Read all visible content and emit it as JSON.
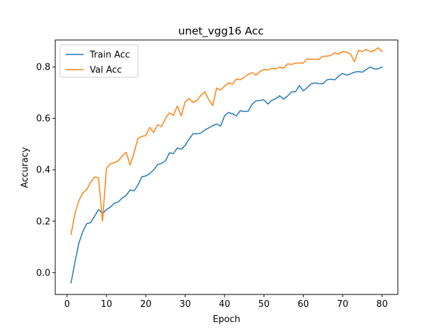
{
  "chart_data": {
    "type": "line",
    "title": "unet_vgg16 Acc",
    "xlabel": "Epoch",
    "ylabel": "Accuracy",
    "xlim": [
      -3,
      84
    ],
    "ylim": [
      -0.085,
      0.905
    ],
    "xticks": [
      0,
      10,
      20,
      30,
      40,
      50,
      60,
      70,
      80
    ],
    "yticks": [
      0.0,
      0.2,
      0.4,
      0.6,
      0.8
    ],
    "ytick_labels": [
      "0.0",
      "0.2",
      "0.4",
      "0.6",
      "0.8"
    ],
    "grid": false,
    "legend": "top-left",
    "x": [
      1,
      2,
      3,
      4,
      5,
      6,
      7,
      8,
      9,
      10,
      11,
      12,
      13,
      14,
      15,
      16,
      17,
      18,
      19,
      20,
      21,
      22,
      23,
      24,
      25,
      26,
      27,
      28,
      29,
      30,
      31,
      32,
      33,
      34,
      35,
      36,
      37,
      38,
      39,
      40,
      41,
      42,
      43,
      44,
      45,
      46,
      47,
      48,
      49,
      50,
      51,
      52,
      53,
      54,
      55,
      56,
      57,
      58,
      59,
      60,
      61,
      62,
      63,
      64,
      65,
      66,
      67,
      68,
      69,
      70,
      71,
      72,
      73,
      74,
      75,
      76,
      77,
      78,
      79,
      80
    ],
    "series": [
      {
        "name": "Train Acc",
        "color": "#1f77b4",
        "values": [
          -0.04,
          0.04,
          0.115,
          0.16,
          0.19,
          0.195,
          0.22,
          0.245,
          0.23,
          0.245,
          0.255,
          0.27,
          0.275,
          0.29,
          0.3,
          0.322,
          0.318,
          0.34,
          0.373,
          0.376,
          0.385,
          0.4,
          0.42,
          0.425,
          0.435,
          0.466,
          0.463,
          0.485,
          0.48,
          0.495,
          0.52,
          0.54,
          0.54,
          0.543,
          0.555,
          0.563,
          0.572,
          0.578,
          0.57,
          0.61,
          0.623,
          0.618,
          0.61,
          0.63,
          0.627,
          0.628,
          0.655,
          0.668,
          0.67,
          0.672,
          0.656,
          0.67,
          0.677,
          0.688,
          0.675,
          0.687,
          0.703,
          0.703,
          0.728,
          0.707,
          0.72,
          0.735,
          0.738,
          0.735,
          0.735,
          0.75,
          0.752,
          0.75,
          0.765,
          0.775,
          0.768,
          0.773,
          0.78,
          0.782,
          0.78,
          0.79,
          0.8,
          0.792,
          0.793,
          0.8
        ]
      },
      {
        "name": "Val Acc",
        "color": "#ff7f0e",
        "values": [
          0.148,
          0.23,
          0.28,
          0.31,
          0.323,
          0.352,
          0.372,
          0.368,
          0.2,
          0.405,
          0.423,
          0.428,
          0.435,
          0.453,
          0.468,
          0.418,
          0.465,
          0.522,
          0.53,
          0.533,
          0.565,
          0.545,
          0.575,
          0.568,
          0.6,
          0.622,
          0.612,
          0.648,
          0.61,
          0.664,
          0.678,
          0.662,
          0.67,
          0.69,
          0.703,
          0.672,
          0.65,
          0.718,
          0.71,
          0.725,
          0.738,
          0.733,
          0.753,
          0.75,
          0.76,
          0.772,
          0.778,
          0.768,
          0.782,
          0.79,
          0.788,
          0.795,
          0.792,
          0.8,
          0.795,
          0.812,
          0.81,
          0.815,
          0.815,
          0.815,
          0.832,
          0.83,
          0.83,
          0.83,
          0.842,
          0.842,
          0.845,
          0.855,
          0.85,
          0.86,
          0.858,
          0.85,
          0.82,
          0.865,
          0.86,
          0.868,
          0.86,
          0.863,
          0.875,
          0.86
        ]
      }
    ]
  }
}
